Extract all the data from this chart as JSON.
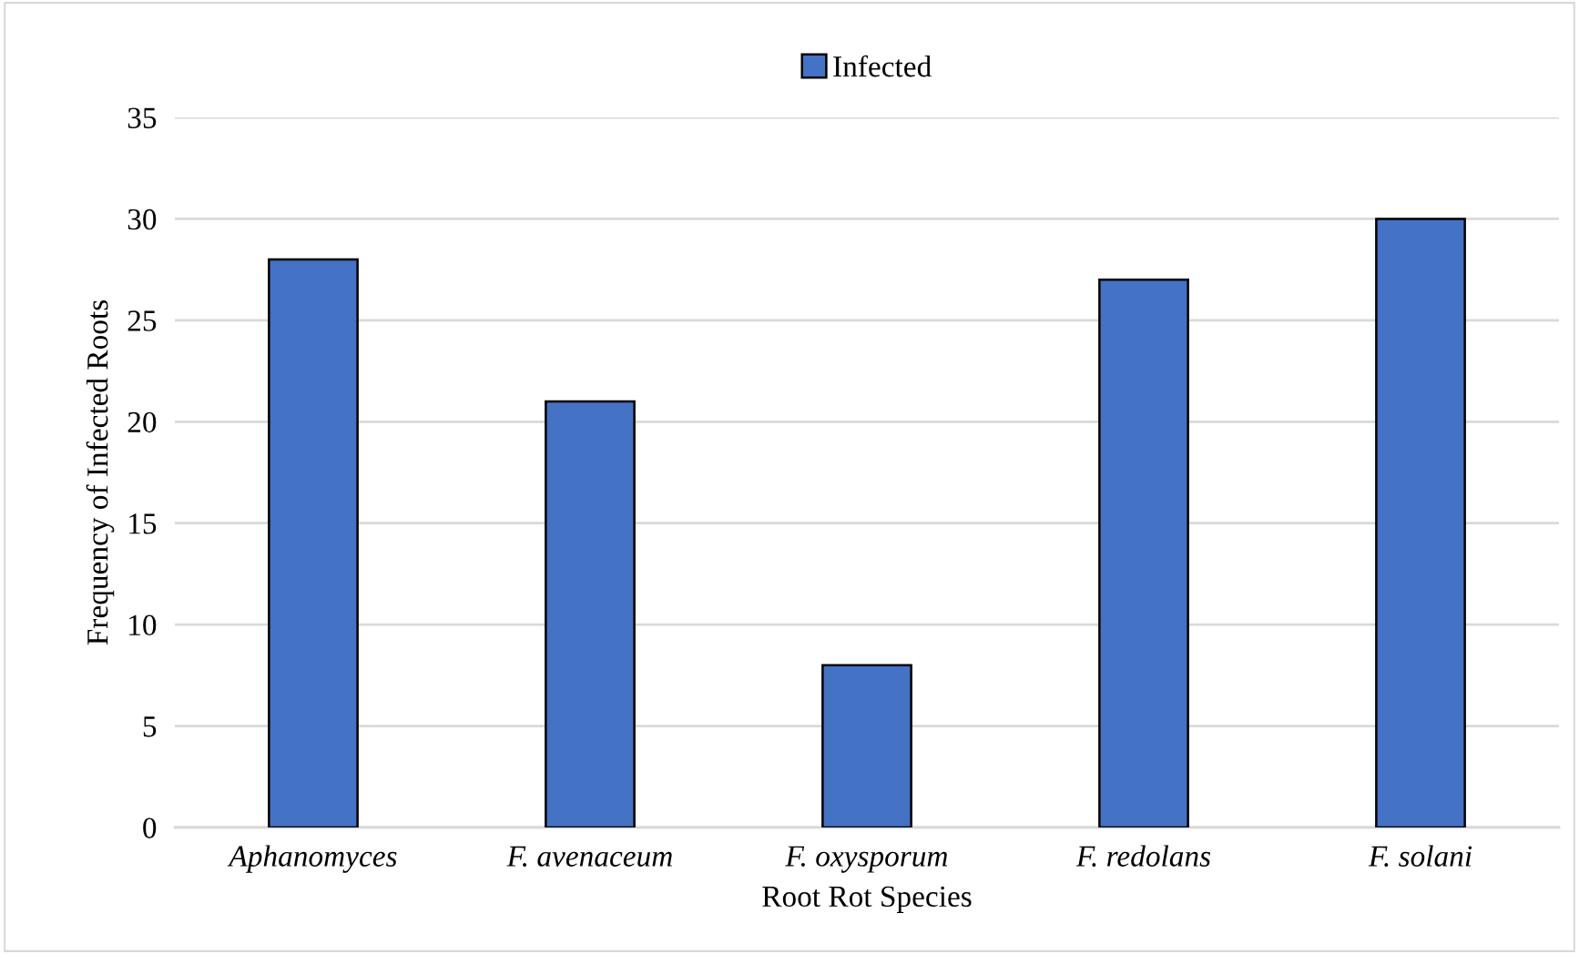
{
  "chart_data": {
    "type": "bar",
    "xlabel": "Root Rot Species",
    "ylabel": "Frequency of Infected Roots",
    "categories": [
      "Aphanomyces",
      "F. avenaceum",
      "F. oxysporum",
      "F. redolans",
      "F. solani"
    ],
    "series": [
      {
        "name": "Infected",
        "color": "#4472c4",
        "values": [
          28,
          21,
          8,
          27,
          30
        ]
      }
    ],
    "ylim": [
      0,
      35
    ],
    "yticks": [
      0,
      5,
      10,
      15,
      20,
      25,
      30,
      35
    ],
    "grid": "y",
    "legend": "top"
  }
}
